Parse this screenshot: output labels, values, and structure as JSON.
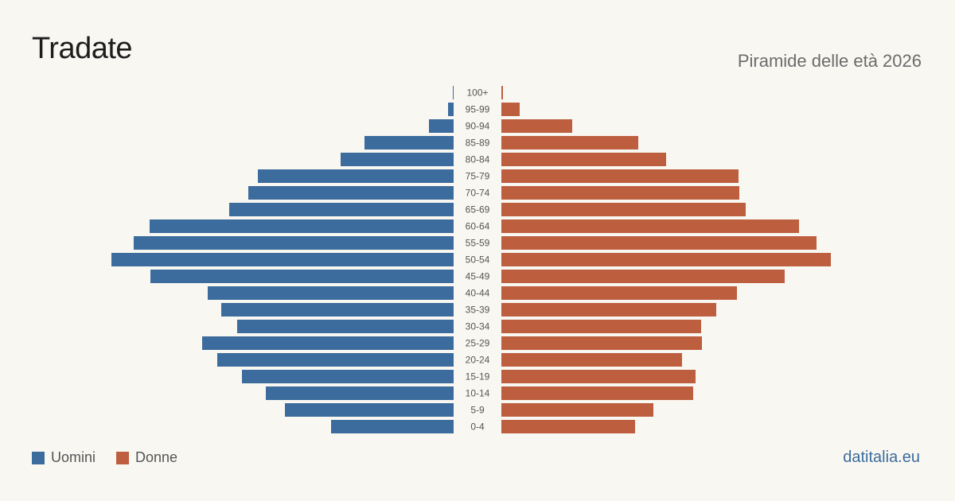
{
  "header": {
    "title": "Tradate",
    "subtitle": "Piramide delle età 2026"
  },
  "footer": {
    "brand": "datitalia.eu"
  },
  "colors": {
    "men": "#3b6c9d",
    "women": "#bd5f3f",
    "label": "#555555"
  },
  "chart_data": {
    "type": "bar",
    "orientation": "horizontal-pyramid",
    "categories": [
      "100+",
      "95-99",
      "90-94",
      "85-89",
      "80-84",
      "75-79",
      "70-74",
      "65-69",
      "60-64",
      "55-59",
      "50-54",
      "45-49",
      "40-44",
      "35-39",
      "30-34",
      "25-29",
      "20-24",
      "15-19",
      "10-14",
      "5-9",
      "0-4"
    ],
    "series": [
      {
        "name": "Uomini",
        "color": "#3b6c9d",
        "values": [
          1,
          7,
          31,
          112,
          142,
          246,
          258,
          282,
          382,
          402,
          430,
          381,
          309,
          292,
          272,
          316,
          297,
          266,
          236,
          212,
          154
        ]
      },
      {
        "name": "Donne",
        "color": "#bd5f3f",
        "values": [
          2,
          23,
          89,
          172,
          207,
          298,
          299,
          307,
          374,
          396,
          414,
          356,
          296,
          270,
          251,
          252,
          227,
          244,
          241,
          191,
          168
        ]
      }
    ],
    "legend_position": "bottom-left",
    "grid": false
  }
}
